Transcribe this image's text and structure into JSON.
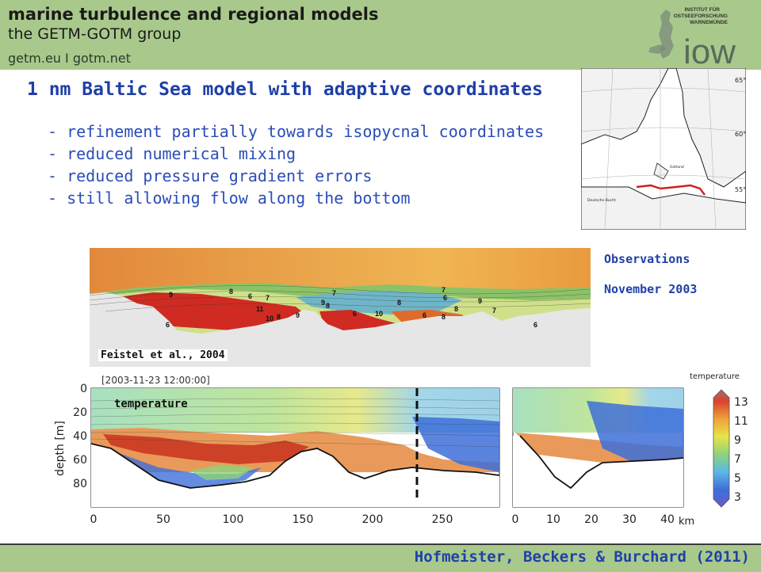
{
  "header": {
    "title": "marine turbulence and regional models",
    "subtitle": "the GETM-GOTM group",
    "links": "getm.eu  I  gotm.net"
  },
  "logo": {
    "lines": [
      "INSTITUT FÜR",
      "OSTSEEFORSCHUNG",
      "WARNEMÜNDE"
    ],
    "word": "iow"
  },
  "slide": {
    "heading": "1 nm Baltic Sea model with adaptive coordinates",
    "bullets": [
      "- refinement partially towards isopycnal coordinates",
      "- reduced numerical mixing",
      "- reduced pressure gradient errors",
      "- still allowing flow along the bottom"
    ]
  },
  "map": {
    "lat_labels": [
      "65°",
      "60°",
      "55°"
    ],
    "region_labels": [
      "Gotland",
      "Deutsche Bucht"
    ]
  },
  "observations": {
    "label": "Observations",
    "date": "November 2003",
    "source": "Feistel et al., 2004",
    "contour_labels": [
      "9",
      "8",
      "6",
      "7",
      "11",
      "10",
      "8",
      "9",
      "9",
      "8",
      "7",
      "6",
      "10",
      "8",
      "6",
      "7",
      "6",
      "8",
      "8",
      "9",
      "7",
      "6",
      "6"
    ]
  },
  "model_plot": {
    "timestamp": "[2003-11-23 12:00:00]",
    "panel_label": "temperature",
    "ylabel": "depth [m]",
    "yticks": [
      "0",
      "20",
      "40",
      "60",
      "80"
    ],
    "xticks_left": [
      "0",
      "50",
      "100",
      "150",
      "200",
      "250"
    ],
    "xticks_right": [
      "0",
      "10",
      "20",
      "30",
      "40"
    ],
    "xunit": "km",
    "colorbar_title": "temperature",
    "colorbar_ticks": [
      "13",
      "11",
      "9",
      "7",
      "5",
      "3"
    ],
    "colors": {
      "warm": "#c8321e",
      "mid": "#e88a2a",
      "yellow": "#e7e44a",
      "green": "#8fd27a",
      "cyan": "#7fd0cf",
      "blue": "#3d6fd8"
    }
  },
  "footer": {
    "authors": "Hofmeister, Beckers & Burchard (2011)"
  }
}
